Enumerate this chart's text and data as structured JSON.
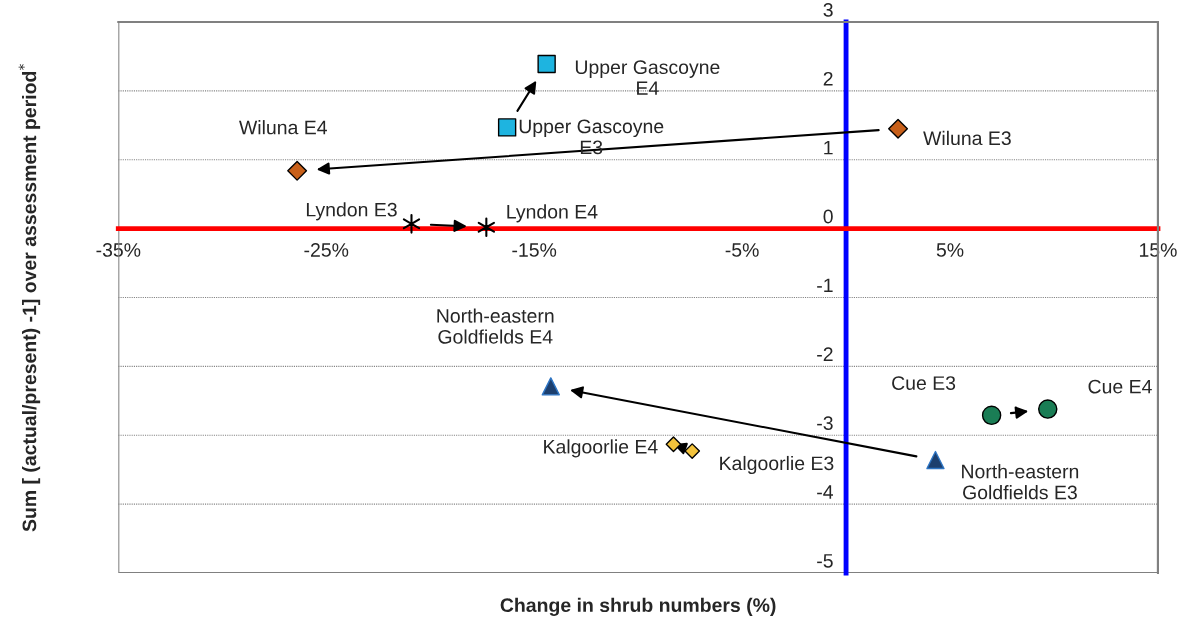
{
  "chart_data": {
    "type": "scatter",
    "xlabel": "Change in shrub numbers (%)",
    "ylabel": "Sum [ (actual/present) -1] over assessment period$^{*}$",
    "xlim": [
      -35,
      15
    ],
    "xticks": [
      {
        "value": -35,
        "label": "-35%"
      },
      {
        "value": -25,
        "label": "-25%"
      },
      {
        "value": -15,
        "label": "-15%"
      },
      {
        "value": -5,
        "label": "-5%"
      },
      {
        "value": 5,
        "label": "5%"
      },
      {
        "value": 15,
        "label": "15%"
      }
    ],
    "ylim": [
      -5,
      3
    ],
    "yticks": [
      -5,
      -4,
      -3,
      -2,
      -1,
      0,
      1,
      2,
      3
    ],
    "grid": "y",
    "legend": false,
    "series": [
      {
        "color": "#1eb4e0",
        "marker": "square",
        "x": [
          -16.3,
          -14.4
        ],
        "values": [
          1.47,
          2.39
        ]
      },
      {
        "color": "#c8601a",
        "marker": "diamond",
        "x": [
          2.5,
          -26.4
        ],
        "values": [
          1.45,
          0.84
        ]
      },
      {
        "color": "#000000",
        "marker": "cross",
        "x": [
          -20.9,
          -17.3
        ],
        "values": [
          0.07,
          0.02
        ]
      },
      {
        "color": "#1c3f6e",
        "marker": "triangle",
        "x": [
          4.3,
          -14.2
        ],
        "values": [
          -3.36,
          -2.29
        ]
      },
      {
        "color": "#1a7d55",
        "marker": "circle",
        "x": [
          7.0,
          9.7
        ],
        "values": [
          -2.71,
          -2.62
        ]
      },
      {
        "color": "#f3c33c",
        "marker": "diamond",
        "x": [
          -7.4,
          -8.3
        ],
        "values": [
          -3.23,
          -3.13
        ]
      }
    ],
    "annotations": [
      {
        "text": "Upper Gascoyne\nE3",
        "x": -16.3,
        "y": 1.47
      },
      {
        "text": "Upper Gascoyne\nE4",
        "x": -14.4,
        "y": 2.39
      },
      {
        "text": "Wiluna E3",
        "x": 2.5,
        "y": 1.45
      },
      {
        "text": "Wiluna E4",
        "x": -26.4,
        "y": 0.84
      },
      {
        "text": "Lyndon E3",
        "x": -20.9,
        "y": 0.07
      },
      {
        "text": "Lyndon E4",
        "x": -17.3,
        "y": 0.02
      },
      {
        "text": "North-eastern\nGoldfields E3",
        "x": 4.3,
        "y": -3.36
      },
      {
        "text": "North-eastern\nGoldfields E4",
        "x": -14.2,
        "y": -2.29
      },
      {
        "text": "Cue E3",
        "x": 7.0,
        "y": -2.71
      },
      {
        "text": "Cue E4",
        "x": 9.7,
        "y": -2.62
      },
      {
        "text": "Kalgoorlie E3",
        "x": -7.4,
        "y": -3.23
      },
      {
        "text": "Kalgoorlie E4",
        "x": -8.3,
        "y": -3.13
      }
    ]
  }
}
